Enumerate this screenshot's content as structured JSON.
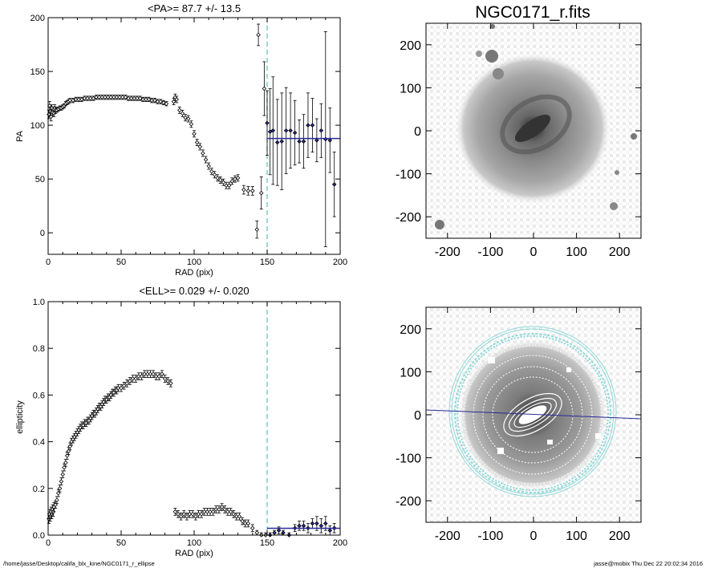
{
  "colors": {
    "fit": "#2a2a9a",
    "marker": "#2a2a9a",
    "dashed": "#5bbfb8",
    "ring": "#8fd8d8"
  },
  "footer": {
    "left": "/home/jasse/Desktop/califa_blx_kine/NGC0171_r_ellipse",
    "right": "jasse@mobix  Thu Dec 22 20:02:34 2016"
  },
  "image_title": "NGC0171_r.fits",
  "image_axes": {
    "x_ticks": [
      "-200",
      "-100",
      "0",
      "100",
      "200"
    ],
    "y_ticks": [
      "200",
      "100",
      "0",
      "-100",
      "-200"
    ]
  },
  "chart_data": [
    {
      "type": "scatter",
      "title": "<PA>=  87.7 +/-  13.5",
      "xlabel": "RAD (pix)",
      "ylabel": "PA",
      "xlim": [
        0,
        200
      ],
      "ylim": [
        -20,
        200
      ],
      "x_ticks": [
        "0",
        "50",
        "100",
        "150",
        "200"
      ],
      "y_ticks": [
        "0",
        "50",
        "100",
        "150",
        "200"
      ],
      "dashed_x": 150,
      "fit": {
        "value": 87.7,
        "x_range": [
          150,
          200
        ]
      },
      "points": [
        {
          "x": 0.5,
          "y": 110,
          "e": 4
        },
        {
          "x": 1.0,
          "y": 118,
          "e": 4
        },
        {
          "x": 1.5,
          "y": 113,
          "e": 4
        },
        {
          "x": 2,
          "y": 108,
          "e": 4
        },
        {
          "x": 2.5,
          "y": 116,
          "e": 3
        },
        {
          "x": 3,
          "y": 112,
          "e": 3
        },
        {
          "x": 3.5,
          "y": 114,
          "e": 3
        },
        {
          "x": 4,
          "y": 111,
          "e": 3
        },
        {
          "x": 4.5,
          "y": 116,
          "e": 3
        },
        {
          "x": 5,
          "y": 114,
          "e": 3
        },
        {
          "x": 6,
          "y": 114,
          "e": 2
        },
        {
          "x": 7,
          "y": 115,
          "e": 2
        },
        {
          "x": 8,
          "y": 116,
          "e": 2
        },
        {
          "x": 9,
          "y": 116,
          "e": 2
        },
        {
          "x": 10,
          "y": 117,
          "e": 2
        },
        {
          "x": 11,
          "y": 118,
          "e": 2
        },
        {
          "x": 12,
          "y": 120,
          "e": 2
        },
        {
          "x": 13,
          "y": 121,
          "e": 2
        },
        {
          "x": 14,
          "y": 122,
          "e": 2
        },
        {
          "x": 15,
          "y": 123,
          "e": 2
        },
        {
          "x": 17,
          "y": 123,
          "e": 2
        },
        {
          "x": 19,
          "y": 124,
          "e": 2
        },
        {
          "x": 21,
          "y": 124,
          "e": 2
        },
        {
          "x": 23,
          "y": 124,
          "e": 2
        },
        {
          "x": 25,
          "y": 125,
          "e": 2
        },
        {
          "x": 27,
          "y": 125,
          "e": 2
        },
        {
          "x": 29,
          "y": 125,
          "e": 2
        },
        {
          "x": 31,
          "y": 125,
          "e": 2
        },
        {
          "x": 33,
          "y": 126,
          "e": 2
        },
        {
          "x": 35,
          "y": 126,
          "e": 2
        },
        {
          "x": 37,
          "y": 126,
          "e": 2
        },
        {
          "x": 39,
          "y": 126,
          "e": 2
        },
        {
          "x": 41,
          "y": 126,
          "e": 2
        },
        {
          "x": 43,
          "y": 126,
          "e": 2
        },
        {
          "x": 45,
          "y": 126,
          "e": 2
        },
        {
          "x": 47,
          "y": 126,
          "e": 2
        },
        {
          "x": 49,
          "y": 126,
          "e": 2
        },
        {
          "x": 51,
          "y": 126,
          "e": 2
        },
        {
          "x": 53,
          "y": 126,
          "e": 2
        },
        {
          "x": 55,
          "y": 125,
          "e": 2
        },
        {
          "x": 57,
          "y": 125,
          "e": 2
        },
        {
          "x": 59,
          "y": 125,
          "e": 2
        },
        {
          "x": 61,
          "y": 125,
          "e": 2
        },
        {
          "x": 63,
          "y": 125,
          "e": 2
        },
        {
          "x": 65,
          "y": 124,
          "e": 2
        },
        {
          "x": 67,
          "y": 124,
          "e": 2
        },
        {
          "x": 69,
          "y": 124,
          "e": 2
        },
        {
          "x": 71,
          "y": 123,
          "e": 2
        },
        {
          "x": 73,
          "y": 123,
          "e": 2
        },
        {
          "x": 75,
          "y": 122,
          "e": 2
        },
        {
          "x": 77,
          "y": 122,
          "e": 2
        },
        {
          "x": 79,
          "y": 121,
          "e": 2
        },
        {
          "x": 81,
          "y": 120,
          "e": 2
        },
        {
          "x": 86,
          "y": 122,
          "e": 3
        },
        {
          "x": 87,
          "y": 126,
          "e": 3
        },
        {
          "x": 88,
          "y": 124,
          "e": 3
        },
        {
          "x": 90,
          "y": 114,
          "e": 3
        },
        {
          "x": 92,
          "y": 111,
          "e": 3
        },
        {
          "x": 94,
          "y": 107,
          "e": 3
        },
        {
          "x": 96,
          "y": 106,
          "e": 3
        },
        {
          "x": 98,
          "y": 101,
          "e": 3
        },
        {
          "x": 100,
          "y": 92,
          "e": 3
        },
        {
          "x": 102,
          "y": 84,
          "e": 3
        },
        {
          "x": 104,
          "y": 80,
          "e": 3
        },
        {
          "x": 106,
          "y": 74,
          "e": 3
        },
        {
          "x": 108,
          "y": 68,
          "e": 3
        },
        {
          "x": 110,
          "y": 62,
          "e": 3
        },
        {
          "x": 112,
          "y": 57,
          "e": 3
        },
        {
          "x": 114,
          "y": 54,
          "e": 3
        },
        {
          "x": 116,
          "y": 51,
          "e": 3
        },
        {
          "x": 118,
          "y": 49,
          "e": 3
        },
        {
          "x": 120,
          "y": 47,
          "e": 3
        },
        {
          "x": 122,
          "y": 44,
          "e": 3
        },
        {
          "x": 124,
          "y": 44,
          "e": 3
        },
        {
          "x": 126,
          "y": 48,
          "e": 3
        },
        {
          "x": 128,
          "y": 50,
          "e": 3
        },
        {
          "x": 130,
          "y": 51,
          "e": 3
        },
        {
          "x": 134,
          "y": 40,
          "e": 4
        },
        {
          "x": 137,
          "y": 39,
          "e": 4
        },
        {
          "x": 140,
          "y": 39,
          "e": 4
        },
        {
          "x": 143,
          "y": 3,
          "e": 8
        },
        {
          "x": 144,
          "y": 184,
          "e": 10
        },
        {
          "x": 146,
          "y": 37,
          "e": 15
        },
        {
          "x": 148,
          "y": 134,
          "e": 25
        },
        {
          "x": 150,
          "y": 102,
          "e": 30
        },
        {
          "x": 152,
          "y": 94,
          "e": 40
        },
        {
          "x": 154,
          "y": 95,
          "e": 50
        },
        {
          "x": 157,
          "y": 84,
          "e": 40
        },
        {
          "x": 160,
          "y": 85,
          "e": 45
        },
        {
          "x": 163,
          "y": 95,
          "e": 40
        },
        {
          "x": 166,
          "y": 95,
          "e": 35
        },
        {
          "x": 169,
          "y": 93,
          "e": 30
        },
        {
          "x": 172,
          "y": 85,
          "e": 20
        },
        {
          "x": 175,
          "y": 85,
          "e": 25
        },
        {
          "x": 178,
          "y": 100,
          "e": 30
        },
        {
          "x": 181,
          "y": 100,
          "e": 25
        },
        {
          "x": 184,
          "y": 86,
          "e": 20
        },
        {
          "x": 187,
          "y": 95,
          "e": 25
        },
        {
          "x": 190,
          "y": 87,
          "e": 100
        },
        {
          "x": 193,
          "y": 86,
          "e": 30
        },
        {
          "x": 196,
          "y": 45,
          "e": 30
        }
      ]
    },
    {
      "type": "scatter",
      "title": "<ELL>= 0.029 +/-  0.020",
      "xlabel": "RAD (pix)",
      "ylabel": "ellipticity",
      "xlim": [
        0,
        200
      ],
      "ylim": [
        0,
        1.0
      ],
      "x_ticks": [
        "0",
        "50",
        "100",
        "150",
        "200"
      ],
      "y_ticks": [
        "0.0",
        "0.2",
        "0.4",
        "0.6",
        "0.8",
        "1.0"
      ],
      "dashed_x": 150,
      "fit": {
        "value": 0.029,
        "x_range": [
          150,
          200
        ]
      },
      "points": [
        {
          "x": 0.5,
          "y": 0.07,
          "e": 0.02
        },
        {
          "x": 1,
          "y": 0.09,
          "e": 0.02
        },
        {
          "x": 1.5,
          "y": 0.08,
          "e": 0.02
        },
        {
          "x": 2,
          "y": 0.1,
          "e": 0.02
        },
        {
          "x": 2.5,
          "y": 0.09,
          "e": 0.02
        },
        {
          "x": 3,
          "y": 0.11,
          "e": 0.02
        },
        {
          "x": 3.5,
          "y": 0.1,
          "e": 0.02
        },
        {
          "x": 4,
          "y": 0.12,
          "e": 0.02
        },
        {
          "x": 5,
          "y": 0.13,
          "e": 0.015
        },
        {
          "x": 6,
          "y": 0.15,
          "e": 0.015
        },
        {
          "x": 7,
          "y": 0.18,
          "e": 0.015
        },
        {
          "x": 8,
          "y": 0.2,
          "e": 0.015
        },
        {
          "x": 9,
          "y": 0.23,
          "e": 0.015
        },
        {
          "x": 10,
          "y": 0.26,
          "e": 0.015
        },
        {
          "x": 11,
          "y": 0.29,
          "e": 0.015
        },
        {
          "x": 12,
          "y": 0.31,
          "e": 0.015
        },
        {
          "x": 13,
          "y": 0.34,
          "e": 0.015
        },
        {
          "x": 14,
          "y": 0.36,
          "e": 0.015
        },
        {
          "x": 15,
          "y": 0.38,
          "e": 0.015
        },
        {
          "x": 16,
          "y": 0.4,
          "e": 0.015
        },
        {
          "x": 17,
          "y": 0.41,
          "e": 0.015
        },
        {
          "x": 18,
          "y": 0.42,
          "e": 0.015
        },
        {
          "x": 19,
          "y": 0.43,
          "e": 0.015
        },
        {
          "x": 20,
          "y": 0.44,
          "e": 0.015
        },
        {
          "x": 21,
          "y": 0.45,
          "e": 0.015
        },
        {
          "x": 22,
          "y": 0.46,
          "e": 0.015
        },
        {
          "x": 23,
          "y": 0.47,
          "e": 0.015
        },
        {
          "x": 24,
          "y": 0.47,
          "e": 0.015
        },
        {
          "x": 25,
          "y": 0.48,
          "e": 0.015
        },
        {
          "x": 26,
          "y": 0.48,
          "e": 0.015
        },
        {
          "x": 27,
          "y": 0.49,
          "e": 0.015
        },
        {
          "x": 28,
          "y": 0.49,
          "e": 0.015
        },
        {
          "x": 29,
          "y": 0.5,
          "e": 0.015
        },
        {
          "x": 30,
          "y": 0.51,
          "e": 0.015
        },
        {
          "x": 31,
          "y": 0.52,
          "e": 0.015
        },
        {
          "x": 32,
          "y": 0.52,
          "e": 0.015
        },
        {
          "x": 33,
          "y": 0.53,
          "e": 0.015
        },
        {
          "x": 34,
          "y": 0.54,
          "e": 0.015
        },
        {
          "x": 35,
          "y": 0.55,
          "e": 0.015
        },
        {
          "x": 36,
          "y": 0.55,
          "e": 0.015
        },
        {
          "x": 37,
          "y": 0.56,
          "e": 0.015
        },
        {
          "x": 38,
          "y": 0.57,
          "e": 0.015
        },
        {
          "x": 39,
          "y": 0.58,
          "e": 0.015
        },
        {
          "x": 40,
          "y": 0.58,
          "e": 0.015
        },
        {
          "x": 41,
          "y": 0.59,
          "e": 0.015
        },
        {
          "x": 42,
          "y": 0.59,
          "e": 0.015
        },
        {
          "x": 43,
          "y": 0.6,
          "e": 0.015
        },
        {
          "x": 44,
          "y": 0.61,
          "e": 0.015
        },
        {
          "x": 45,
          "y": 0.61,
          "e": 0.015
        },
        {
          "x": 46,
          "y": 0.62,
          "e": 0.015
        },
        {
          "x": 47,
          "y": 0.62,
          "e": 0.015
        },
        {
          "x": 48,
          "y": 0.63,
          "e": 0.015
        },
        {
          "x": 50,
          "y": 0.63,
          "e": 0.015
        },
        {
          "x": 52,
          "y": 0.64,
          "e": 0.015
        },
        {
          "x": 54,
          "y": 0.65,
          "e": 0.015
        },
        {
          "x": 56,
          "y": 0.66,
          "e": 0.015
        },
        {
          "x": 58,
          "y": 0.67,
          "e": 0.015
        },
        {
          "x": 60,
          "y": 0.67,
          "e": 0.015
        },
        {
          "x": 62,
          "y": 0.68,
          "e": 0.015
        },
        {
          "x": 64,
          "y": 0.68,
          "e": 0.015
        },
        {
          "x": 66,
          "y": 0.69,
          "e": 0.015
        },
        {
          "x": 68,
          "y": 0.69,
          "e": 0.015
        },
        {
          "x": 70,
          "y": 0.69,
          "e": 0.015
        },
        {
          "x": 72,
          "y": 0.69,
          "e": 0.015
        },
        {
          "x": 74,
          "y": 0.68,
          "e": 0.015
        },
        {
          "x": 76,
          "y": 0.68,
          "e": 0.015
        },
        {
          "x": 78,
          "y": 0.69,
          "e": 0.015
        },
        {
          "x": 80,
          "y": 0.67,
          "e": 0.015
        },
        {
          "x": 82,
          "y": 0.66,
          "e": 0.015
        },
        {
          "x": 84,
          "y": 0.65,
          "e": 0.015
        },
        {
          "x": 87,
          "y": 0.1,
          "e": 0.015
        },
        {
          "x": 89,
          "y": 0.09,
          "e": 0.015
        },
        {
          "x": 91,
          "y": 0.08,
          "e": 0.015
        },
        {
          "x": 93,
          "y": 0.09,
          "e": 0.015
        },
        {
          "x": 95,
          "y": 0.08,
          "e": 0.015
        },
        {
          "x": 97,
          "y": 0.09,
          "e": 0.015
        },
        {
          "x": 99,
          "y": 0.09,
          "e": 0.015
        },
        {
          "x": 101,
          "y": 0.08,
          "e": 0.015
        },
        {
          "x": 103,
          "y": 0.09,
          "e": 0.015
        },
        {
          "x": 105,
          "y": 0.09,
          "e": 0.015
        },
        {
          "x": 107,
          "y": 0.1,
          "e": 0.015
        },
        {
          "x": 109,
          "y": 0.1,
          "e": 0.015
        },
        {
          "x": 111,
          "y": 0.1,
          "e": 0.015
        },
        {
          "x": 113,
          "y": 0.1,
          "e": 0.015
        },
        {
          "x": 115,
          "y": 0.11,
          "e": 0.015
        },
        {
          "x": 117,
          "y": 0.11,
          "e": 0.015
        },
        {
          "x": 119,
          "y": 0.12,
          "e": 0.015
        },
        {
          "x": 121,
          "y": 0.11,
          "e": 0.015
        },
        {
          "x": 123,
          "y": 0.1,
          "e": 0.015
        },
        {
          "x": 125,
          "y": 0.1,
          "e": 0.015
        },
        {
          "x": 127,
          "y": 0.09,
          "e": 0.015
        },
        {
          "x": 129,
          "y": 0.08,
          "e": 0.015
        },
        {
          "x": 131,
          "y": 0.08,
          "e": 0.015
        },
        {
          "x": 133,
          "y": 0.06,
          "e": 0.015
        },
        {
          "x": 135,
          "y": 0.05,
          "e": 0.015
        },
        {
          "x": 137,
          "y": 0.05,
          "e": 0.015
        },
        {
          "x": 140,
          "y": 0.03,
          "e": 0.015
        },
        {
          "x": 143,
          "y": 0.01,
          "e": 0.01
        },
        {
          "x": 146,
          "y": 0.0,
          "e": 0.01
        },
        {
          "x": 149,
          "y": 0.0,
          "e": 0.01
        },
        {
          "x": 152,
          "y": 0.0,
          "e": 0.01
        },
        {
          "x": 155,
          "y": 0.01,
          "e": 0.01
        },
        {
          "x": 158,
          "y": 0.02,
          "e": 0.015
        },
        {
          "x": 161,
          "y": 0.01,
          "e": 0.01
        },
        {
          "x": 165,
          "y": 0.0,
          "e": 0.01
        },
        {
          "x": 169,
          "y": 0.03,
          "e": 0.015
        },
        {
          "x": 172,
          "y": 0.04,
          "e": 0.02
        },
        {
          "x": 175,
          "y": 0.04,
          "e": 0.02
        },
        {
          "x": 178,
          "y": 0.03,
          "e": 0.02
        },
        {
          "x": 181,
          "y": 0.05,
          "e": 0.02
        },
        {
          "x": 184,
          "y": 0.05,
          "e": 0.03
        },
        {
          "x": 187,
          "y": 0.04,
          "e": 0.03
        },
        {
          "x": 190,
          "y": 0.05,
          "e": 0.03
        },
        {
          "x": 193,
          "y": 0.02,
          "e": 0.02
        },
        {
          "x": 196,
          "y": 0.03,
          "e": 0.02
        }
      ]
    }
  ]
}
